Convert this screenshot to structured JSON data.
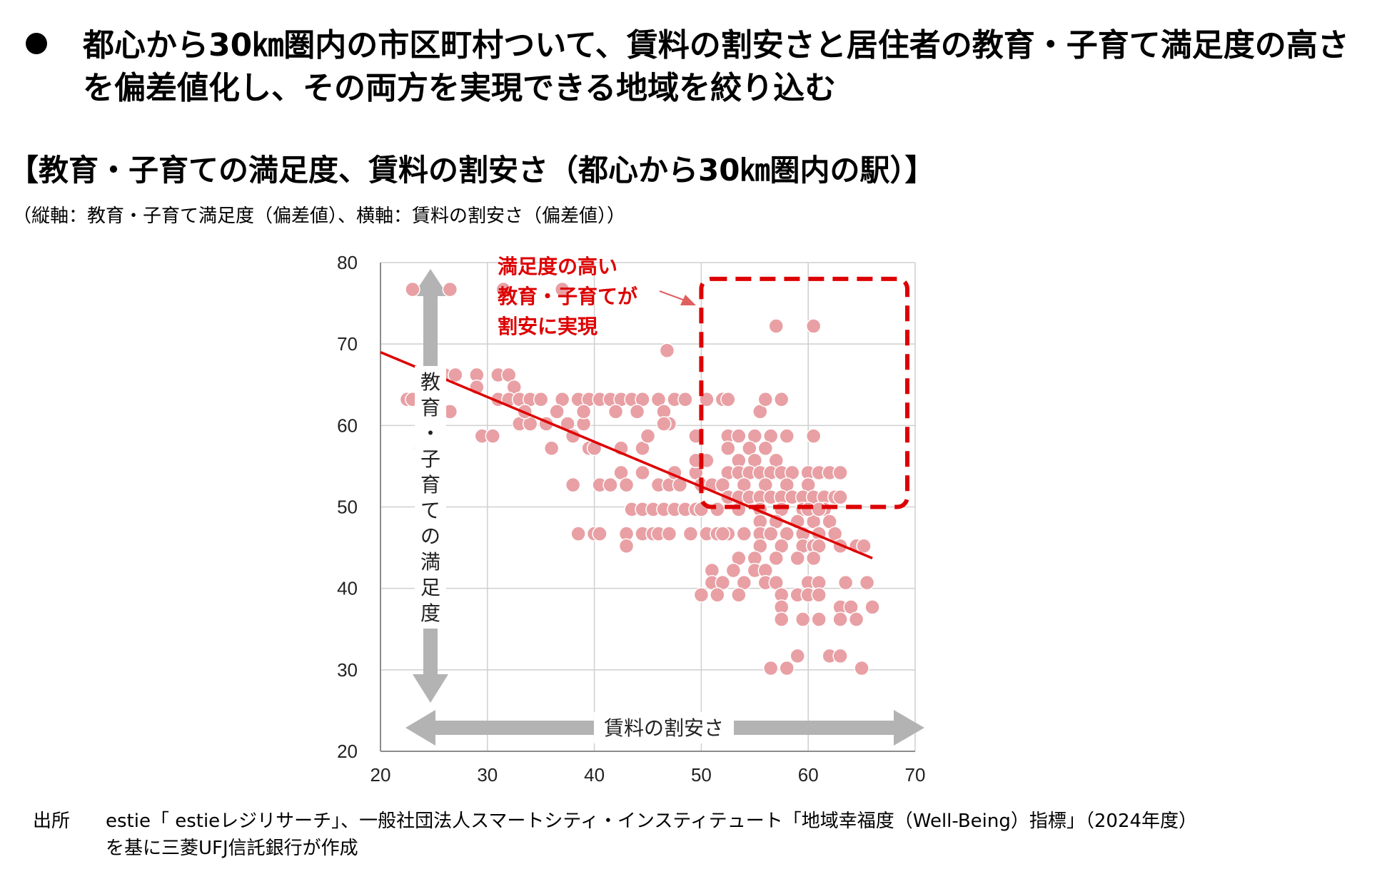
{
  "bullet": {
    "text": "都心から30㎞圏内の市区町村ついて、賃料の割安さと居住者の教育・子育て満足度の高さを偏差値化し、その両方を実現できる地域を絞り込む"
  },
  "chart_title": "【教育・子育ての満足度、賃料の割安さ（都心から30㎞圏内の駅）】",
  "chart_subtitle": "（縦軸：教育・子育て満足度（偏差値）、横軸：賃料の割安さ（偏差値））",
  "source": {
    "label": "出所",
    "line1": "estie「 estieレジリサーチ」、一般社団法人スマートシティ・インスティテュート「地域幸福度（Well-Being）指標」（2024年度）",
    "line2": "を基に三菱UFJ信託銀行が作成"
  },
  "chart_data": {
    "type": "scatter",
    "xlim": [
      20,
      70
    ],
    "ylim": [
      20,
      80
    ],
    "x_ticks": [
      "20",
      "30",
      "40",
      "50",
      "60",
      "70"
    ],
    "y_ticks": [
      "20",
      "30",
      "40",
      "50",
      "60",
      "70",
      "80"
    ],
    "grid": true,
    "point_color": "#e8a0a4",
    "trend_color": "#dd0000",
    "highlight_color": "#dd0000",
    "trendline": {
      "x": [
        20,
        66
      ],
      "y": [
        69,
        43.7
      ]
    },
    "highlight_region": {
      "x": [
        50,
        70
      ],
      "y": [
        50,
        78
      ]
    },
    "y_axis_arrow_label": "教育・子育ての満足度",
    "x_axis_arrow_label": "賃料の割安さ",
    "annotation": [
      "満足度の高い",
      "教育・子育てが",
      "割安に実現"
    ],
    "points": [
      [
        22.5,
        63.2
      ],
      [
        23,
        63.2
      ],
      [
        23,
        76.7
      ],
      [
        26.5,
        76.7
      ],
      [
        23.8,
        57.2
      ],
      [
        25,
        66.2
      ],
      [
        26,
        66.2
      ],
      [
        27,
        66.2
      ],
      [
        29,
        66.2
      ],
      [
        31,
        66.2
      ],
      [
        32,
        66.2
      ],
      [
        26.5,
        61.7
      ],
      [
        29,
        64.7
      ],
      [
        29.5,
        58.7
      ],
      [
        30.5,
        58.7
      ],
      [
        32.5,
        64.7
      ],
      [
        31,
        63.2
      ],
      [
        32,
        63.2
      ],
      [
        33,
        63.2
      ],
      [
        34,
        63.2
      ],
      [
        35,
        63.2
      ],
      [
        37,
        63.2
      ],
      [
        38.5,
        63.2
      ],
      [
        39.5,
        63.2
      ],
      [
        40.5,
        63.2
      ],
      [
        41.5,
        63.2
      ],
      [
        42.5,
        63.2
      ],
      [
        43.5,
        63.2
      ],
      [
        44.5,
        63.2
      ],
      [
        46,
        63.2
      ],
      [
        47.5,
        63.2
      ],
      [
        48.5,
        63.2
      ],
      [
        31.5,
        76.7
      ],
      [
        37,
        76.7
      ],
      [
        33,
        60.2
      ],
      [
        34,
        60.2
      ],
      [
        35.5,
        60.2
      ],
      [
        37.5,
        60.2
      ],
      [
        39,
        60.2
      ],
      [
        33.5,
        61.7
      ],
      [
        36.5,
        61.7
      ],
      [
        39,
        61.7
      ],
      [
        42,
        61.7
      ],
      [
        44,
        61.7
      ],
      [
        46.5,
        61.7
      ],
      [
        36,
        57.2
      ],
      [
        38,
        58.7
      ],
      [
        39.5,
        57.2
      ],
      [
        40,
        57.2
      ],
      [
        42.5,
        57.2
      ],
      [
        44.5,
        57.2
      ],
      [
        45,
        58.7
      ],
      [
        47,
        60.2
      ],
      [
        46.5,
        60.2
      ],
      [
        38,
        52.7
      ],
      [
        40.5,
        52.7
      ],
      [
        41.5,
        52.7
      ],
      [
        42.5,
        54.2
      ],
      [
        43,
        52.7
      ],
      [
        44.5,
        54.2
      ],
      [
        46,
        52.7
      ],
      [
        47,
        52.7
      ],
      [
        47.5,
        54.2
      ],
      [
        48,
        52.7
      ],
      [
        49.5,
        54.2
      ],
      [
        43.5,
        49.7
      ],
      [
        44.5,
        49.7
      ],
      [
        45.5,
        49.7
      ],
      [
        46.5,
        49.7
      ],
      [
        47.5,
        49.7
      ],
      [
        48.5,
        49.7
      ],
      [
        49.5,
        49.7
      ],
      [
        50,
        49.7
      ],
      [
        38.5,
        46.7
      ],
      [
        40,
        46.7
      ],
      [
        40.5,
        46.7
      ],
      [
        43,
        46.7
      ],
      [
        44.5,
        46.7
      ],
      [
        45.5,
        46.7
      ],
      [
        46,
        46.7
      ],
      [
        47,
        46.7
      ],
      [
        49,
        46.7
      ],
      [
        50.5,
        46.7
      ],
      [
        51.5,
        46.7
      ],
      [
        52.5,
        46.7
      ],
      [
        43,
        45.2
      ],
      [
        46.8,
        69.2
      ],
      [
        49.5,
        58.7
      ],
      [
        49.5,
        55.7
      ],
      [
        50.5,
        55.7
      ],
      [
        50,
        52.7
      ],
      [
        51,
        52.7
      ],
      [
        50.5,
        63.2
      ],
      [
        52,
        63.2
      ],
      [
        52.5,
        63.2
      ],
      [
        52.5,
        58.7
      ],
      [
        53.5,
        58.7
      ],
      [
        55,
        58.7
      ],
      [
        56.5,
        58.7
      ],
      [
        58,
        58.7
      ],
      [
        60.5,
        58.7
      ],
      [
        52.5,
        57.2
      ],
      [
        54.5,
        57.2
      ],
      [
        56,
        57.2
      ],
      [
        53.5,
        55.7
      ],
      [
        55,
        55.7
      ],
      [
        57,
        55.7
      ],
      [
        52.5,
        54.2
      ],
      [
        53.5,
        54.2
      ],
      [
        54.5,
        54.2
      ],
      [
        55.5,
        54.2
      ],
      [
        56.5,
        54.2
      ],
      [
        57.5,
        54.2
      ],
      [
        58.5,
        54.2
      ],
      [
        60,
        54.2
      ],
      [
        61,
        54.2
      ],
      [
        62,
        54.2
      ],
      [
        63,
        54.2
      ],
      [
        52,
        52.7
      ],
      [
        54,
        52.7
      ],
      [
        56,
        52.7
      ],
      [
        58,
        52.7
      ],
      [
        60,
        52.7
      ],
      [
        52.5,
        51.2
      ],
      [
        53.5,
        51.2
      ],
      [
        54.5,
        51.2
      ],
      [
        55.5,
        51.2
      ],
      [
        56.5,
        51.2
      ],
      [
        57.5,
        51.2
      ],
      [
        58.5,
        51.2
      ],
      [
        59.5,
        51.2
      ],
      [
        60.5,
        51.2
      ],
      [
        61.5,
        51.2
      ],
      [
        62.5,
        51.2
      ],
      [
        63,
        51.2
      ],
      [
        55.5,
        61.7
      ],
      [
        56,
        63.2
      ],
      [
        57.5,
        63.2
      ],
      [
        51.5,
        49.7
      ],
      [
        53.5,
        49.7
      ],
      [
        55.5,
        49.7
      ],
      [
        57.5,
        49.7
      ],
      [
        59.5,
        49.7
      ],
      [
        61.5,
        49.7
      ],
      [
        55.5,
        48.2
      ],
      [
        57,
        48.2
      ],
      [
        59,
        48.2
      ],
      [
        60.5,
        48.2
      ],
      [
        62,
        48.2
      ],
      [
        52,
        46.7
      ],
      [
        54,
        46.7
      ],
      [
        55.5,
        46.7
      ],
      [
        56.5,
        46.7
      ],
      [
        58,
        46.7
      ],
      [
        59.5,
        46.7
      ],
      [
        61,
        46.7
      ],
      [
        62.5,
        46.7
      ],
      [
        55.5,
        45.2
      ],
      [
        57.5,
        45.2
      ],
      [
        59.5,
        45.2
      ],
      [
        60.5,
        45.2
      ],
      [
        61,
        45.2
      ],
      [
        63,
        45.2
      ],
      [
        64.5,
        45.2
      ],
      [
        65.2,
        45.2
      ],
      [
        53.5,
        43.7
      ],
      [
        55,
        43.7
      ],
      [
        57,
        43.7
      ],
      [
        59,
        43.7
      ],
      [
        60.5,
        43.7
      ],
      [
        51,
        42.2
      ],
      [
        53,
        42.2
      ],
      [
        55,
        42.2
      ],
      [
        56,
        42.2
      ],
      [
        51,
        40.7
      ],
      [
        52,
        40.7
      ],
      [
        54,
        40.7
      ],
      [
        56,
        40.7
      ],
      [
        57,
        40.7
      ],
      [
        60,
        40.7
      ],
      [
        61,
        40.7
      ],
      [
        63.5,
        40.7
      ],
      [
        65.5,
        40.7
      ],
      [
        50,
        39.2
      ],
      [
        51.5,
        39.2
      ],
      [
        53.5,
        39.2
      ],
      [
        57.5,
        39.2
      ],
      [
        59,
        39.2
      ],
      [
        60,
        39.2
      ],
      [
        61,
        39.2
      ],
      [
        57.5,
        37.7
      ],
      [
        63,
        37.7
      ],
      [
        64,
        37.7
      ],
      [
        66,
        37.7
      ],
      [
        57.5,
        36.2
      ],
      [
        59.5,
        36.2
      ],
      [
        61,
        36.2
      ],
      [
        63,
        36.2
      ],
      [
        64.5,
        36.2
      ],
      [
        59,
        31.7
      ],
      [
        62,
        31.7
      ],
      [
        63,
        31.7
      ],
      [
        56.5,
        30.2
      ],
      [
        58,
        30.2
      ],
      [
        65,
        30.2
      ],
      [
        57,
        72.2
      ],
      [
        60.5,
        72.2
      ],
      [
        60,
        49.7
      ],
      [
        61,
        49.7
      ]
    ]
  }
}
